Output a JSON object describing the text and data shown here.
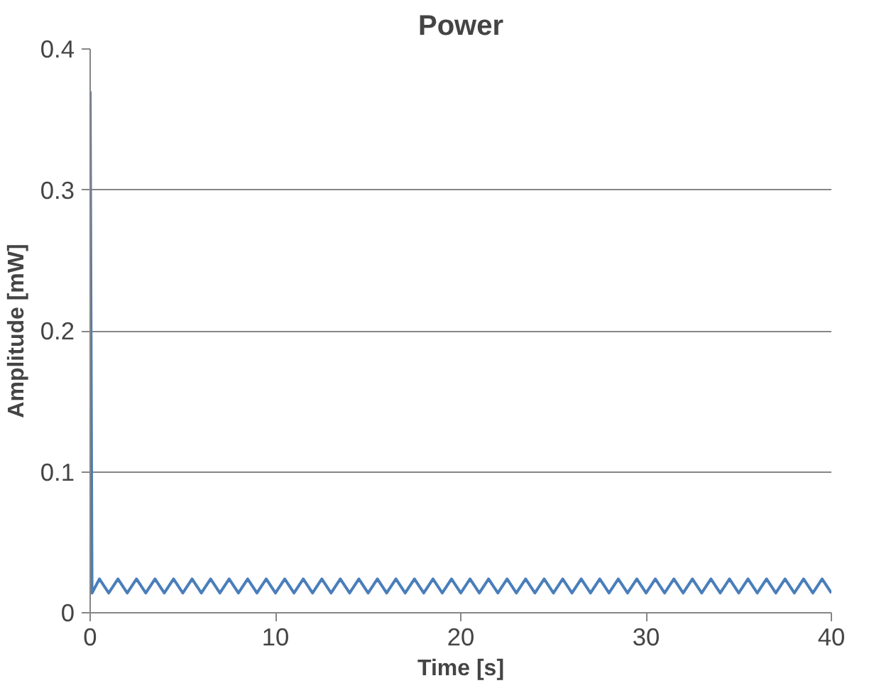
{
  "chart_data": {
    "type": "line",
    "title": "Power",
    "xlabel": "Time [s]",
    "ylabel": "Amplitude [mW]",
    "xlim": [
      0,
      40
    ],
    "xticks": [
      0,
      10,
      20,
      30,
      40
    ],
    "ylim": [
      0,
      0.4
    ],
    "yticks": [
      0,
      0.1,
      0.2,
      0.3,
      0.4
    ],
    "grid": "y",
    "marker": "none",
    "line_style": "solid",
    "series": [
      {
        "color": "#4a7ebb",
        "x": [
          0,
          0.1,
          0.5,
          1,
          1.5,
          2,
          2.5,
          3,
          3.5,
          4,
          4.5,
          5,
          5.5,
          6,
          6.5,
          7,
          7.5,
          8,
          8.5,
          9,
          9.5,
          10,
          10.5,
          11,
          11.5,
          12,
          12.5,
          13,
          13.5,
          14,
          14.5,
          15,
          15.5,
          16,
          16.5,
          17,
          17.5,
          18,
          18.5,
          19,
          19.5,
          20,
          20.5,
          21,
          21.5,
          22,
          22.5,
          23,
          23.5,
          24,
          24.5,
          25,
          25.5,
          26,
          26.5,
          27,
          27.5,
          28,
          28.5,
          29,
          29.5,
          30,
          30.5,
          31,
          31.5,
          32,
          32.5,
          33,
          33.5,
          34,
          34.5,
          35,
          35.5,
          36,
          36.5,
          37,
          37.5,
          38,
          38.5,
          39,
          39.5,
          40
        ],
        "values": [
          0.37,
          0.014,
          0.024,
          0.014,
          0.024,
          0.014,
          0.024,
          0.014,
          0.024,
          0.014,
          0.024,
          0.014,
          0.024,
          0.014,
          0.024,
          0.014,
          0.024,
          0.014,
          0.024,
          0.014,
          0.024,
          0.014,
          0.024,
          0.014,
          0.024,
          0.014,
          0.024,
          0.014,
          0.024,
          0.014,
          0.024,
          0.014,
          0.024,
          0.014,
          0.024,
          0.014,
          0.024,
          0.014,
          0.024,
          0.014,
          0.024,
          0.014,
          0.024,
          0.014,
          0.024,
          0.014,
          0.024,
          0.014,
          0.024,
          0.014,
          0.024,
          0.014,
          0.024,
          0.014,
          0.024,
          0.014,
          0.024,
          0.014,
          0.024,
          0.014,
          0.024,
          0.014,
          0.024,
          0.014,
          0.024,
          0.014,
          0.024,
          0.014,
          0.024,
          0.014,
          0.024,
          0.014,
          0.024,
          0.014,
          0.024,
          0.014,
          0.024,
          0.014,
          0.024,
          0.014,
          0.024,
          0.014
        ]
      }
    ]
  }
}
